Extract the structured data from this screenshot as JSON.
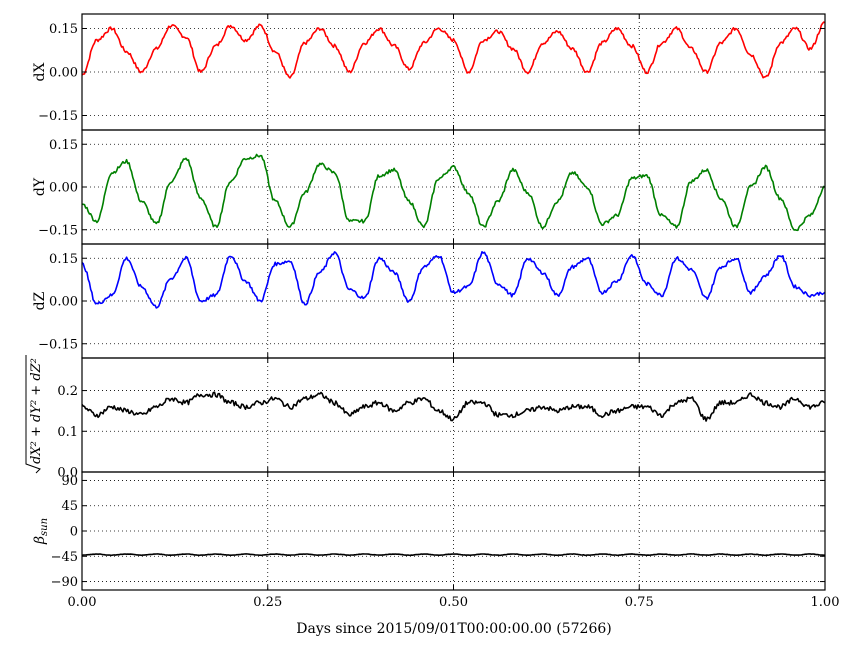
{
  "chart_data": {
    "type": "line",
    "xlabel": "Days since 2015/09/01T00:00:00.00 (57266)",
    "xlim": [
      0.0,
      1.0
    ],
    "xticks": [
      0.0,
      0.25,
      0.5,
      0.75,
      1.0
    ],
    "xtick_labels": [
      "0.00",
      "0.25",
      "0.50",
      "0.75",
      "1.00"
    ],
    "grid": true,
    "panels": [
      {
        "id": "dX",
        "ylabel": "dX",
        "ylim": [
          -0.2,
          0.2
        ],
        "yticks": [
          -0.15,
          0.0,
          0.15
        ],
        "ytick_labels": [
          "−0.15",
          "0.00",
          "0.15"
        ],
        "color": "#ff0000",
        "series": {
          "x": [
            0.0,
            0.02,
            0.04,
            0.06,
            0.08,
            0.1,
            0.12,
            0.14,
            0.16,
            0.18,
            0.2,
            0.22,
            0.24,
            0.26,
            0.28,
            0.3,
            0.32,
            0.34,
            0.36,
            0.38,
            0.4,
            0.42,
            0.44,
            0.46,
            0.48,
            0.5,
            0.52,
            0.54,
            0.56,
            0.58,
            0.6,
            0.62,
            0.64,
            0.66,
            0.68,
            0.7,
            0.72,
            0.74,
            0.76,
            0.78,
            0.8,
            0.82,
            0.84,
            0.86,
            0.88,
            0.9,
            0.92,
            0.94,
            0.96,
            0.98,
            1.0
          ],
          "y": [
            -0.01,
            0.11,
            0.15,
            0.07,
            0.0,
            0.08,
            0.16,
            0.12,
            0.0,
            0.09,
            0.16,
            0.11,
            0.16,
            0.07,
            -0.02,
            0.1,
            0.15,
            0.09,
            0.0,
            0.1,
            0.15,
            0.09,
            0.01,
            0.1,
            0.15,
            0.11,
            0.0,
            0.11,
            0.14,
            0.08,
            0.0,
            0.1,
            0.14,
            0.08,
            0.0,
            0.1,
            0.15,
            0.09,
            0.0,
            0.1,
            0.15,
            0.08,
            0.0,
            0.1,
            0.15,
            0.06,
            -0.02,
            0.1,
            0.15,
            0.08,
            0.17
          ]
        }
      },
      {
        "id": "dY",
        "ylabel": "dY",
        "ylim": [
          -0.2,
          0.2
        ],
        "yticks": [
          -0.15,
          0.0,
          0.15
        ],
        "ytick_labels": [
          "−0.15",
          "0.00",
          "0.15"
        ],
        "color": "#008000",
        "series": {
          "x": [
            0.0,
            0.02,
            0.04,
            0.06,
            0.08,
            0.1,
            0.12,
            0.14,
            0.16,
            0.18,
            0.2,
            0.22,
            0.24,
            0.26,
            0.28,
            0.3,
            0.32,
            0.34,
            0.36,
            0.38,
            0.4,
            0.42,
            0.44,
            0.46,
            0.48,
            0.5,
            0.52,
            0.54,
            0.56,
            0.58,
            0.6,
            0.62,
            0.64,
            0.66,
            0.68,
            0.7,
            0.72,
            0.74,
            0.76,
            0.78,
            0.8,
            0.82,
            0.84,
            0.86,
            0.88,
            0.9,
            0.92,
            0.94,
            0.96,
            0.98,
            1.0
          ],
          "y": [
            -0.06,
            -0.12,
            0.05,
            0.09,
            -0.05,
            -0.13,
            0.02,
            0.1,
            -0.04,
            -0.14,
            0.02,
            0.1,
            0.11,
            -0.05,
            -0.14,
            -0.02,
            0.08,
            0.05,
            -0.12,
            -0.12,
            0.04,
            0.06,
            -0.05,
            -0.14,
            0.03,
            0.07,
            -0.02,
            -0.14,
            -0.05,
            0.06,
            -0.02,
            -0.14,
            -0.05,
            0.05,
            0.0,
            -0.13,
            -0.1,
            0.03,
            0.04,
            -0.1,
            -0.14,
            0.02,
            0.06,
            -0.04,
            -0.14,
            0.0,
            0.07,
            -0.04,
            -0.15,
            -0.1,
            0.0
          ]
        }
      },
      {
        "id": "dZ",
        "ylabel": "dZ",
        "ylim": [
          -0.2,
          0.2
        ],
        "yticks": [
          -0.15,
          0.0,
          0.15
        ],
        "ytick_labels": [
          "−0.15",
          "0.00",
          "0.15"
        ],
        "color": "#0000ff",
        "series": {
          "x": [
            0.0,
            0.02,
            0.04,
            0.06,
            0.08,
            0.1,
            0.12,
            0.14,
            0.16,
            0.18,
            0.2,
            0.22,
            0.24,
            0.26,
            0.28,
            0.3,
            0.32,
            0.34,
            0.36,
            0.38,
            0.4,
            0.42,
            0.44,
            0.46,
            0.48,
            0.5,
            0.52,
            0.54,
            0.56,
            0.58,
            0.6,
            0.62,
            0.64,
            0.66,
            0.68,
            0.7,
            0.72,
            0.74,
            0.76,
            0.78,
            0.8,
            0.82,
            0.84,
            0.86,
            0.88,
            0.9,
            0.92,
            0.94,
            0.96,
            0.98,
            1.0
          ],
          "y": [
            0.13,
            -0.01,
            0.02,
            0.15,
            0.05,
            -0.02,
            0.08,
            0.15,
            0.0,
            0.02,
            0.16,
            0.07,
            0.0,
            0.13,
            0.14,
            -0.01,
            0.1,
            0.17,
            0.04,
            0.01,
            0.15,
            0.1,
            0.0,
            0.12,
            0.16,
            0.03,
            0.05,
            0.17,
            0.06,
            0.02,
            0.15,
            0.1,
            0.02,
            0.12,
            0.15,
            0.03,
            0.07,
            0.16,
            0.06,
            0.02,
            0.15,
            0.11,
            0.01,
            0.12,
            0.15,
            0.03,
            0.09,
            0.16,
            0.05,
            0.02,
            0.03
          ]
        }
      },
      {
        "id": "dR",
        "ylabel": "√(dX² + dY² + dZ²)",
        "ylim": [
          0.0,
          0.28
        ],
        "yticks": [
          0.0,
          0.1,
          0.2
        ],
        "ytick_labels": [
          "0.0",
          "0.1",
          "0.2"
        ],
        "color": "#000000",
        "series": {
          "x": [
            0.0,
            0.02,
            0.04,
            0.06,
            0.08,
            0.1,
            0.12,
            0.14,
            0.16,
            0.18,
            0.2,
            0.22,
            0.24,
            0.26,
            0.28,
            0.3,
            0.32,
            0.34,
            0.36,
            0.38,
            0.4,
            0.42,
            0.44,
            0.46,
            0.48,
            0.5,
            0.52,
            0.54,
            0.56,
            0.58,
            0.6,
            0.62,
            0.64,
            0.66,
            0.68,
            0.7,
            0.72,
            0.74,
            0.76,
            0.78,
            0.8,
            0.82,
            0.84,
            0.86,
            0.88,
            0.9,
            0.92,
            0.94,
            0.96,
            0.98,
            1.0
          ],
          "y": [
            0.16,
            0.14,
            0.16,
            0.15,
            0.14,
            0.16,
            0.18,
            0.17,
            0.19,
            0.19,
            0.17,
            0.16,
            0.17,
            0.18,
            0.16,
            0.18,
            0.19,
            0.17,
            0.14,
            0.16,
            0.17,
            0.15,
            0.17,
            0.18,
            0.15,
            0.13,
            0.17,
            0.17,
            0.14,
            0.14,
            0.15,
            0.16,
            0.15,
            0.16,
            0.16,
            0.14,
            0.15,
            0.16,
            0.16,
            0.14,
            0.17,
            0.18,
            0.13,
            0.17,
            0.17,
            0.19,
            0.17,
            0.16,
            0.18,
            0.16,
            0.17
          ]
        }
      },
      {
        "id": "beta",
        "ylabel": "β_sun",
        "ylim": [
          -105,
          105
        ],
        "yticks": [
          -90,
          -45,
          0,
          45,
          90
        ],
        "ytick_labels": [
          "−90",
          "−45",
          "0",
          "45",
          "90"
        ],
        "color": "#000000",
        "series": {
          "x": [
            0.0,
            0.02,
            0.04,
            0.06,
            0.08,
            0.1,
            0.12,
            0.14,
            0.16,
            0.18,
            0.2,
            0.22,
            0.24,
            0.26,
            0.28,
            0.3,
            0.32,
            0.34,
            0.36,
            0.38,
            0.4,
            0.42,
            0.44,
            0.46,
            0.48,
            0.5,
            0.52,
            0.54,
            0.56,
            0.58,
            0.6,
            0.62,
            0.64,
            0.66,
            0.68,
            0.7,
            0.72,
            0.74,
            0.76,
            0.78,
            0.8,
            0.82,
            0.84,
            0.86,
            0.88,
            0.9,
            0.92,
            0.94,
            0.96,
            0.98,
            1.0
          ],
          "y": [
            -43,
            -41,
            -43,
            -41,
            -43,
            -41,
            -43,
            -41,
            -43,
            -41,
            -43,
            -41,
            -43,
            -41,
            -43,
            -41,
            -43,
            -41,
            -43,
            -41,
            -43,
            -41,
            -43,
            -41,
            -43,
            -41,
            -43,
            -41,
            -43,
            -41,
            -43,
            -41,
            -43,
            -41,
            -43,
            -41,
            -43,
            -41,
            -43,
            -41,
            -43,
            -41,
            -43,
            -41,
            -43,
            -41,
            -43,
            -41,
            -43,
            -41,
            -43
          ]
        }
      }
    ]
  }
}
